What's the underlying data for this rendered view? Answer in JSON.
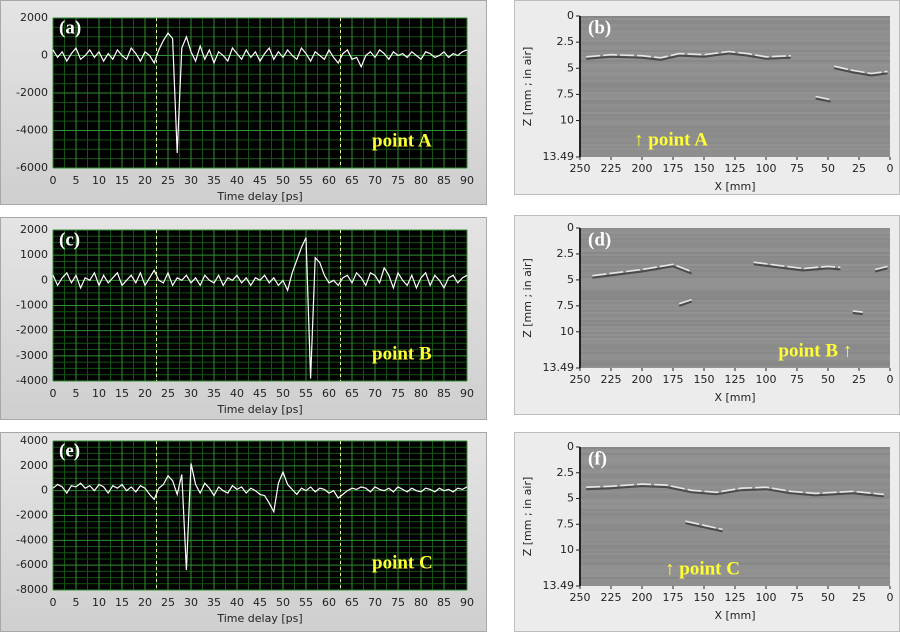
{
  "chart_data": [
    {
      "type": "line",
      "label": "(a)",
      "annotation": "point A",
      "xlabel": "Time delay [ps]",
      "color": "#ffffff",
      "grid": true,
      "xlim": [
        0,
        90
      ],
      "xticks": [
        0,
        5,
        10,
        15,
        20,
        25,
        30,
        35,
        40,
        45,
        50,
        55,
        60,
        65,
        70,
        75,
        80,
        85,
        90
      ],
      "ylim": [
        -6000,
        2000
      ],
      "yticks": [
        2000,
        0,
        -2000,
        -4000,
        -6000
      ],
      "markers": [
        22.5,
        62.5
      ],
      "x": [
        0,
        1,
        2,
        3,
        4,
        5,
        6,
        7,
        8,
        9,
        10,
        11,
        12,
        13,
        14,
        15,
        16,
        17,
        18,
        19,
        20,
        21,
        22,
        23,
        24,
        25,
        26,
        27,
        28,
        29,
        30,
        31,
        32,
        33,
        34,
        35,
        36,
        37,
        38,
        39,
        40,
        41,
        42,
        43,
        44,
        45,
        46,
        47,
        48,
        49,
        50,
        51,
        52,
        53,
        54,
        55,
        56,
        57,
        58,
        59,
        60,
        61,
        62,
        63,
        64,
        65,
        66,
        67,
        68,
        69,
        70,
        71,
        72,
        73,
        74,
        75,
        76,
        77,
        78,
        79,
        80,
        81,
        82,
        83,
        84,
        85,
        86,
        87,
        88,
        89,
        90
      ],
      "values": [
        300,
        -100,
        200,
        -300,
        100,
        400,
        -200,
        0,
        300,
        -100,
        200,
        -300,
        100,
        -200,
        300,
        0,
        -200,
        400,
        100,
        -300,
        200,
        0,
        -400,
        300,
        800,
        1200,
        900,
        -5200,
        400,
        1000,
        200,
        -300,
        500,
        -200,
        300,
        -400,
        200,
        0,
        -300,
        400,
        100,
        -200,
        300,
        -100,
        200,
        -300,
        100,
        400,
        -200,
        200,
        -100,
        300,
        0,
        -200,
        400,
        100,
        -300,
        200,
        0,
        -200,
        300,
        -100,
        -400,
        100,
        300,
        -200,
        -100,
        -600,
        0,
        200,
        -100,
        300,
        100,
        -200,
        200,
        0,
        100,
        -100,
        200,
        0,
        -200,
        200,
        100,
        -100,
        0,
        200,
        -100,
        100,
        0,
        200,
        300
      ]
    },
    {
      "type": "bscan",
      "label": "(b)",
      "annotation": "↑  point A",
      "xlabel": "X [mm]",
      "ylabel": "Z [mm ; in air]",
      "xlim": [
        250,
        0
      ],
      "xticks": [
        250,
        225,
        200,
        175,
        150,
        125,
        100,
        75,
        50,
        25,
        0
      ],
      "ylim": [
        0,
        13.49
      ],
      "yticks": [
        0,
        2.5,
        5,
        7.5,
        10,
        13.49
      ]
    },
    {
      "type": "line",
      "label": "(c)",
      "annotation": "point B",
      "xlabel": "Time delay [ps]",
      "color": "#ffffff",
      "grid": true,
      "xlim": [
        0,
        90
      ],
      "xticks": [
        0,
        5,
        10,
        15,
        20,
        25,
        30,
        35,
        40,
        45,
        50,
        55,
        60,
        65,
        70,
        75,
        80,
        85,
        90
      ],
      "ylim": [
        -4000,
        2000
      ],
      "yticks": [
        2000,
        1000,
        0,
        -1000,
        -2000,
        -3000,
        -4000
      ],
      "markers": [
        22.5,
        62.5
      ],
      "x": [
        0,
        1,
        2,
        3,
        4,
        5,
        6,
        7,
        8,
        9,
        10,
        11,
        12,
        13,
        14,
        15,
        16,
        17,
        18,
        19,
        20,
        21,
        22,
        23,
        24,
        25,
        26,
        27,
        28,
        29,
        30,
        31,
        32,
        33,
        34,
        35,
        36,
        37,
        38,
        39,
        40,
        41,
        42,
        43,
        44,
        45,
        46,
        47,
        48,
        49,
        50,
        51,
        52,
        53,
        54,
        55,
        56,
        57,
        58,
        59,
        60,
        61,
        62,
        63,
        64,
        65,
        66,
        67,
        68,
        69,
        70,
        71,
        72,
        73,
        74,
        75,
        76,
        77,
        78,
        79,
        80,
        81,
        82,
        83,
        84,
        85,
        86,
        87,
        88,
        89,
        90
      ],
      "values": [
        200,
        -200,
        100,
        300,
        -100,
        200,
        -300,
        100,
        0,
        300,
        -200,
        200,
        -100,
        100,
        300,
        -200,
        0,
        200,
        -100,
        300,
        -200,
        100,
        400,
        0,
        -100,
        300,
        -200,
        100,
        0,
        200,
        -100,
        100,
        -200,
        200,
        0,
        -100,
        200,
        -200,
        100,
        0,
        200,
        -100,
        100,
        -200,
        100,
        0,
        200,
        -100,
        100,
        -200,
        0,
        -400,
        300,
        800,
        1300,
        1700,
        -3900,
        900,
        700,
        200,
        -100,
        0,
        -200,
        100,
        200,
        -100,
        300,
        100,
        -200,
        300,
        200,
        -100,
        500,
        200,
        -300,
        300,
        0,
        -200,
        200,
        -300,
        100,
        300,
        -200,
        200,
        0,
        -300,
        100,
        200,
        -100,
        100,
        200
      ]
    },
    {
      "type": "bscan",
      "label": "(d)",
      "annotation": "point B  ↑",
      "xlabel": "X [mm]",
      "ylabel": "Z [mm ; in air]",
      "xlim": [
        250,
        0
      ],
      "xticks": [
        250,
        225,
        200,
        175,
        150,
        125,
        100,
        75,
        50,
        25,
        0
      ],
      "ylim": [
        0,
        13.49
      ],
      "yticks": [
        0,
        2.5,
        5,
        7.5,
        10,
        13.49
      ]
    },
    {
      "type": "line",
      "label": "(e)",
      "annotation": "point C",
      "xlabel": "Time delay [ps]",
      "color": "#ffffff",
      "grid": true,
      "xlim": [
        0,
        90
      ],
      "xticks": [
        0,
        5,
        10,
        15,
        20,
        25,
        30,
        35,
        40,
        45,
        50,
        55,
        60,
        65,
        70,
        75,
        80,
        85,
        90
      ],
      "ylim": [
        -8000,
        4000
      ],
      "yticks": [
        4000,
        2000,
        0,
        -2000,
        -4000,
        -6000,
        -8000
      ],
      "markers": [
        22.5,
        62.5
      ],
      "x": [
        0,
        1,
        2,
        3,
        4,
        5,
        6,
        7,
        8,
        9,
        10,
        11,
        12,
        13,
        14,
        15,
        16,
        17,
        18,
        19,
        20,
        21,
        22,
        23,
        24,
        25,
        26,
        27,
        28,
        29,
        30,
        31,
        32,
        33,
        34,
        35,
        36,
        37,
        38,
        39,
        40,
        41,
        42,
        43,
        44,
        45,
        46,
        47,
        48,
        49,
        50,
        51,
        52,
        53,
        54,
        55,
        56,
        57,
        58,
        59,
        60,
        61,
        62,
        63,
        64,
        65,
        66,
        67,
        68,
        69,
        70,
        71,
        72,
        73,
        74,
        75,
        76,
        77,
        78,
        79,
        80,
        81,
        82,
        83,
        84,
        85,
        86,
        87,
        88,
        89,
        90
      ],
      "values": [
        200,
        500,
        300,
        -200,
        400,
        300,
        600,
        200,
        400,
        0,
        500,
        300,
        -200,
        400,
        200,
        500,
        0,
        300,
        -100,
        400,
        200,
        -300,
        -700,
        200,
        500,
        1200,
        800,
        -300,
        1300,
        -6400,
        2200,
        500,
        -200,
        600,
        200,
        -400,
        300,
        0,
        -200,
        400,
        100,
        300,
        -200,
        200,
        0,
        -300,
        -400,
        -1000,
        -1700,
        600,
        1500,
        500,
        100,
        -300,
        200,
        0,
        300,
        -100,
        200,
        100,
        -200,
        0,
        -600,
        -300,
        0,
        200,
        100,
        300,
        200,
        -100,
        300,
        100,
        0,
        200,
        -100,
        300,
        100,
        -100,
        200,
        0,
        -100,
        200,
        100,
        -100,
        200,
        0,
        100,
        -100,
        200,
        100,
        300
      ]
    },
    {
      "type": "bscan",
      "label": "(f)",
      "annotation": "↑  point C",
      "xlabel": "X [mm]",
      "ylabel": "Z [mm ; in air]",
      "xlim": [
        250,
        0
      ],
      "xticks": [
        250,
        225,
        200,
        175,
        150,
        125,
        100,
        75,
        50,
        25,
        0
      ],
      "ylim": [
        0,
        13.49
      ],
      "yticks": [
        0,
        2.5,
        5,
        7.5,
        10,
        13.49
      ]
    }
  ]
}
